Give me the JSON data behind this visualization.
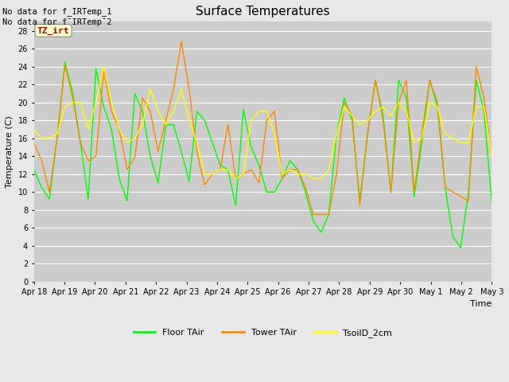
{
  "title": "Surface Temperatures",
  "ylabel": "Temperature (C)",
  "xlabel": "Time",
  "annotation_line1": "No data for f_IRTemp_1",
  "annotation_line2": "No data for f¯IRTemp¯2",
  "annotation_box_label": "TZ_irt",
  "annotation_box_color": "#ffffcc",
  "annotation_box_text_color": "#aa0000",
  "legend_labels": [
    "Floor TAir",
    "Tower TAir",
    "TsoilD_2cm"
  ],
  "line_colors": [
    "#00ff00",
    "#ff8800",
    "#ffff00"
  ],
  "fig_bg_color": "#e8e8e8",
  "plot_bg_color": "#cccccc",
  "ylim": [
    0,
    29
  ],
  "yticks": [
    0,
    2,
    4,
    6,
    8,
    10,
    12,
    14,
    16,
    18,
    20,
    22,
    24,
    26,
    28
  ],
  "xtick_labels": [
    "Apr 18",
    "Apr 19",
    "Apr 20",
    "Apr 21",
    "Apr 22",
    "Apr 23",
    "Apr 24",
    "Apr 25",
    "Apr 26",
    "Apr 27",
    "Apr 28",
    "Apr 29",
    "Apr 30",
    "May 1",
    "May 2",
    "May 3"
  ],
  "figsize": [
    6.4,
    4.8
  ],
  "dpi": 100,
  "floor_tair": [
    12.5,
    10.5,
    9.2,
    16.2,
    24.5,
    21.0,
    15.5,
    9.2,
    23.8,
    19.5,
    17.0,
    11.5,
    9.0,
    21.0,
    19.0,
    14.0,
    11.0,
    17.5,
    17.5,
    14.5,
    11.2,
    19.0,
    18.0,
    15.5,
    13.0,
    12.5,
    8.5,
    19.2,
    15.0,
    13.0,
    10.0,
    10.0,
    11.5,
    13.5,
    12.5,
    10.0,
    6.8,
    5.5,
    7.5,
    16.5,
    20.5,
    18.0,
    9.0,
    16.5,
    22.5,
    18.5,
    10.0,
    22.5,
    20.5,
    9.5,
    15.5,
    22.5,
    19.5,
    10.5,
    5.0,
    3.8,
    10.0,
    22.5,
    19.0,
    8.8
  ],
  "tower_tair": [
    15.5,
    13.5,
    10.0,
    16.0,
    24.2,
    20.5,
    15.5,
    13.5,
    14.0,
    23.5,
    19.0,
    17.0,
    12.5,
    13.8,
    20.5,
    19.0,
    14.5,
    18.0,
    21.5,
    26.8,
    21.5,
    14.5,
    10.8,
    12.0,
    12.5,
    17.5,
    11.5,
    12.0,
    12.5,
    11.0,
    18.0,
    19.0,
    11.5,
    12.5,
    12.5,
    10.5,
    7.5,
    7.5,
    7.5,
    12.0,
    20.0,
    18.5,
    8.5,
    16.5,
    22.5,
    18.0,
    10.0,
    20.0,
    22.5,
    10.0,
    16.5,
    22.5,
    20.0,
    10.5,
    10.0,
    9.5,
    9.0,
    24.0,
    20.5,
    14.0
  ],
  "tsoil_2cm": [
    17.0,
    16.0,
    16.0,
    16.5,
    19.5,
    20.0,
    20.0,
    17.0,
    20.0,
    24.0,
    20.0,
    17.0,
    15.5,
    16.0,
    17.5,
    21.5,
    19.0,
    17.5,
    19.0,
    21.5,
    18.0,
    15.5,
    12.0,
    12.0,
    12.5,
    12.5,
    11.5,
    12.0,
    18.0,
    19.0,
    19.0,
    16.5,
    12.0,
    12.5,
    12.0,
    12.0,
    11.5,
    11.5,
    12.5,
    16.5,
    19.5,
    18.5,
    17.5,
    18.0,
    19.0,
    19.5,
    18.5,
    20.0,
    19.0,
    15.5,
    16.0,
    20.0,
    19.5,
    16.5,
    16.0,
    15.5,
    15.5,
    19.5,
    19.5,
    14.0
  ]
}
